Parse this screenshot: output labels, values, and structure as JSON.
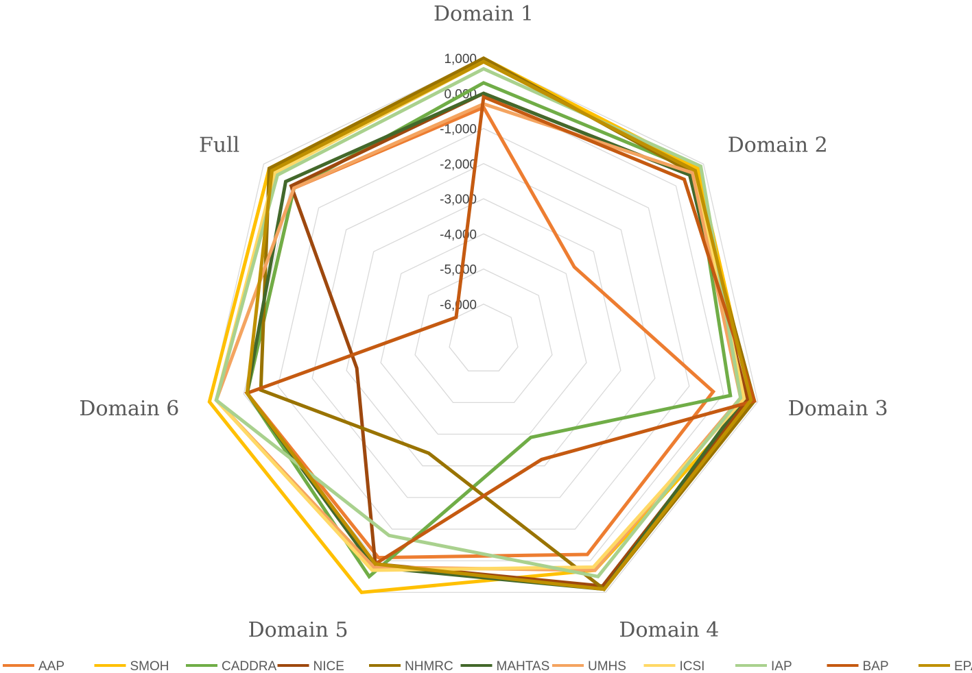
{
  "chart_data": {
    "type": "radar",
    "title": "",
    "axes": [
      "Domain 1",
      "Domain 2",
      "Domain 3",
      "Domain 4",
      "Domain 5",
      "Domain 6",
      "Full"
    ],
    "scale": {
      "min": -7000,
      "max": 1000,
      "ticks": [
        1000,
        0,
        -1000,
        -2000,
        -3000,
        -4000,
        -5000,
        -6000
      ],
      "tick_labels": [
        "1,000",
        "0,000",
        "-1,000",
        "-2,000",
        "-3,000",
        "-4,000",
        "-5,000",
        "-6,000"
      ]
    },
    "grid": true,
    "legend_position": "bottom",
    "series": [
      {
        "name": "AAP",
        "color": "#ED7D31",
        "values": [
          -400,
          -3700,
          -300,
          -200,
          -100,
          -100,
          -100
        ]
      },
      {
        "name": "SMOH",
        "color": "#FFC000",
        "values": [
          1000,
          800,
          800,
          300,
          1000,
          1000,
          800
        ]
      },
      {
        "name": "CADDRA",
        "color": "#70AD47",
        "values": [
          300,
          700,
          200,
          -3900,
          500,
          -100,
          -100
        ]
      },
      {
        "name": "NICE",
        "color": "#9E480E",
        "values": [
          0,
          500,
          700,
          800,
          100,
          -3300,
          0
        ]
      },
      {
        "name": "NHMRC",
        "color": "#997300",
        "values": [
          1000,
          600,
          900,
          900,
          -3400,
          -500,
          800
        ]
      },
      {
        "name": "MAHTAS",
        "color": "#43682B",
        "values": [
          0,
          500,
          600,
          900,
          200,
          -100,
          200
        ]
      },
      {
        "name": "UMHS",
        "color": "#F4A460",
        "values": [
          -300,
          600,
          500,
          300,
          200,
          800,
          -100
        ]
      },
      {
        "name": "ICSI",
        "color": "#FFD966",
        "values": [
          900,
          700,
          600,
          200,
          300,
          800,
          600
        ]
      },
      {
        "name": "IAP",
        "color": "#A9D18E",
        "values": [
          700,
          900,
          500,
          500,
          -800,
          800,
          500
        ]
      },
      {
        "name": "BAP",
        "color": "#C55A11",
        "values": [
          -100,
          300,
          900,
          -3200,
          100,
          -100,
          -6000
        ]
      },
      {
        "name": "EPA",
        "color": "#BF9000",
        "values": [
          900,
          700,
          800,
          900,
          100,
          -100,
          700
        ]
      }
    ]
  }
}
